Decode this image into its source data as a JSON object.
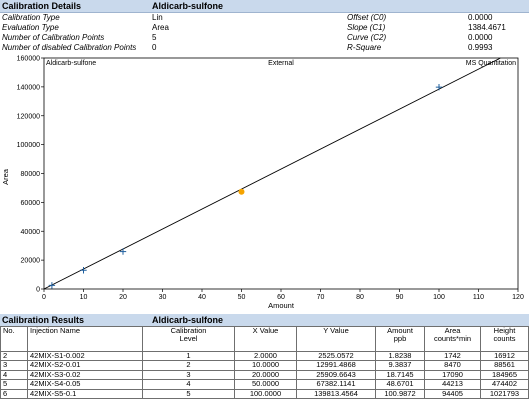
{
  "details_header": {
    "title": "Calibration Details",
    "compound": "Aldicarb-sulfone"
  },
  "details": {
    "rows": [
      {
        "label": "Calibration Type",
        "value": "Lin",
        "label2": "Offset (C0)",
        "value2": "0.0000"
      },
      {
        "label": "Evaluation Type",
        "value": "Area",
        "label2": "Slope (C1)",
        "value2": "1384.4671"
      },
      {
        "label": "Number of Calibration Points",
        "value": "5",
        "label2": "Curve (C2)",
        "value2": "0.0000"
      },
      {
        "label": "Number of disabled Calibration Points",
        "value": "0",
        "label2": "R-Square",
        "value2": "0.9993"
      }
    ]
  },
  "chart_data": {
    "type": "scatter",
    "top_left": "Aldicarb-sulfone",
    "top_center": "External",
    "top_right": "MS Quantitation",
    "xlabel": "Amount",
    "ylabel": "Area",
    "xlim": [
      0,
      120
    ],
    "ylim": [
      0,
      160000
    ],
    "xticks": [
      "0",
      "10",
      "20",
      "30",
      "40",
      "50",
      "60",
      "70",
      "80",
      "90",
      "100",
      "110",
      "120"
    ],
    "yticks": [
      "0",
      "20000",
      "40000",
      "60000",
      "80000",
      "100000",
      "120000",
      "140000",
      "160000"
    ],
    "fit_line": {
      "slope": 1384.4671,
      "intercept": 0
    },
    "points": [
      {
        "x": 2,
        "y": 2525.0572
      },
      {
        "x": 10,
        "y": 12991.4868
      },
      {
        "x": 20,
        "y": 25909.6643
      },
      {
        "x": 100,
        "y": 139813.4564
      }
    ],
    "highlight_point": {
      "x": 50,
      "y": 67382.1141
    },
    "colors": {
      "points": "#1f5f9e",
      "highlight": "#f5a300",
      "line": "#000000"
    }
  },
  "results_header": {
    "title": "Calibration Results",
    "compound": "Aldicarb-sulfone"
  },
  "results": {
    "columns": [
      {
        "line1": "No.",
        "line2": ""
      },
      {
        "line1": "Injection Name",
        "line2": ""
      },
      {
        "line1": "Calibration",
        "line2": "Level"
      },
      {
        "line1": "X Value",
        "line2": ""
      },
      {
        "line1": "Y Value",
        "line2": ""
      },
      {
        "line1": "Amount",
        "line2": "ppb"
      },
      {
        "line1": "Area",
        "line2": "counts*min"
      },
      {
        "line1": "Height",
        "line2": "counts"
      }
    ],
    "rows": [
      [
        "2",
        "42MIX-S1-0.002",
        "1",
        "2.0000",
        "2525.0572",
        "1.8238",
        "1742",
        "16912"
      ],
      [
        "3",
        "42MIX-S2-0.01",
        "2",
        "10.0000",
        "12991.4868",
        "9.3837",
        "8470",
        "88561"
      ],
      [
        "4",
        "42MIX-S3-0.02",
        "3",
        "20.0000",
        "25909.6643",
        "18.7145",
        "17090",
        "184965"
      ],
      [
        "5",
        "42MIX-S4-0.05",
        "4",
        "50.0000",
        "67382.1141",
        "48.6701",
        "44213",
        "474402"
      ],
      [
        "6",
        "42MIX-S5-0.1",
        "5",
        "100.0000",
        "139813.4564",
        "100.9872",
        "94405",
        "1021793"
      ]
    ]
  }
}
